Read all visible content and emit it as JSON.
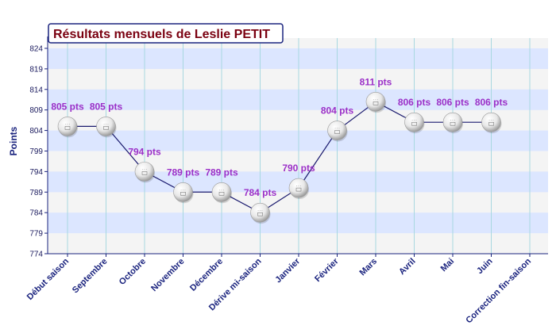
{
  "chart_data": {
    "type": "line",
    "title": "Résultats mensuels de Leslie PETIT",
    "ylabel": "Points",
    "xlabel": "",
    "categories": [
      "Début saison",
      "Septembre",
      "Octobre",
      "Novembre",
      "Décembre",
      "Dérive mi-saison",
      "Janvier",
      "Février",
      "Mars",
      "Avril",
      "Mai",
      "Juin",
      "Correction fin-saison"
    ],
    "values": [
      805,
      805,
      794,
      789,
      789,
      784,
      790,
      804,
      811,
      806,
      806,
      806,
      null
    ],
    "labels": [
      "805 pts",
      "805 pts",
      "794 pts",
      "789 pts",
      "789 pts",
      "784 pts",
      "790 pts",
      "804 pts",
      "811 pts",
      "806 pts",
      "806 pts",
      "806 pts",
      ""
    ],
    "yticks": [
      774,
      779,
      784,
      789,
      794,
      799,
      804,
      809,
      814,
      819,
      824
    ],
    "ylim": [
      774,
      826.5
    ],
    "grid": true,
    "band_colors": [
      "#dce6ff",
      "#f4f4f4"
    ],
    "line_color": "#1a1a6e",
    "label_color": "#9b30c8",
    "title_color": "#7a0010"
  }
}
